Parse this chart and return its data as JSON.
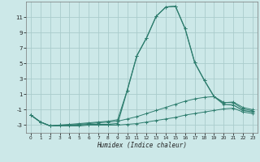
{
  "x": [
    0,
    1,
    2,
    3,
    4,
    5,
    6,
    7,
    8,
    9,
    10,
    11,
    12,
    13,
    14,
    15,
    16,
    17,
    18,
    19,
    20,
    21,
    22,
    23
  ],
  "line_main": [
    -1.7,
    -2.6,
    -3.1,
    -3.0,
    -3.0,
    -3.0,
    -2.9,
    -2.9,
    -2.9,
    -2.8,
    1.5,
    6.0,
    8.3,
    11.1,
    12.3,
    12.4,
    9.5,
    5.1,
    2.8,
    0.7,
    -0.3,
    -0.4,
    -1.1,
    -1.3
  ],
  "line_upper": [
    -1.7,
    -2.6,
    -3.1,
    -3.0,
    -2.9,
    -2.8,
    -2.7,
    -2.6,
    -2.5,
    -2.3,
    1.5,
    6.0,
    8.3,
    11.1,
    12.3,
    12.4,
    9.5,
    5.1,
    2.8,
    0.7,
    -0.1,
    0.0,
    -0.7,
    -1.0
  ],
  "line_mid": [
    -1.7,
    -2.6,
    -3.1,
    -3.0,
    -3.0,
    -2.9,
    -2.8,
    -2.7,
    -2.6,
    -2.5,
    -2.2,
    -1.9,
    -1.5,
    -1.1,
    -0.7,
    -0.3,
    0.1,
    0.4,
    0.6,
    0.7,
    -0.05,
    -0.1,
    -0.9,
    -1.15
  ],
  "line_lower": [
    -1.7,
    -2.6,
    -3.1,
    -3.1,
    -3.1,
    -3.1,
    -3.0,
    -3.0,
    -3.0,
    -3.0,
    -2.9,
    -2.8,
    -2.6,
    -2.4,
    -2.2,
    -2.0,
    -1.7,
    -1.5,
    -1.3,
    -1.1,
    -0.9,
    -0.8,
    -1.3,
    -1.5
  ],
  "color": "#2e7d6e",
  "bg_color": "#cce8e8",
  "grid_color": "#aacccc",
  "xlabel": "Humidex (Indice chaleur)",
  "xlim": [
    -0.5,
    23.5
  ],
  "ylim": [
    -4,
    13
  ],
  "yticks": [
    -3,
    -1,
    1,
    3,
    5,
    7,
    9,
    11
  ],
  "xticks": [
    0,
    1,
    2,
    3,
    4,
    5,
    6,
    7,
    8,
    9,
    10,
    11,
    12,
    13,
    14,
    15,
    16,
    17,
    18,
    19,
    20,
    21,
    22,
    23
  ]
}
